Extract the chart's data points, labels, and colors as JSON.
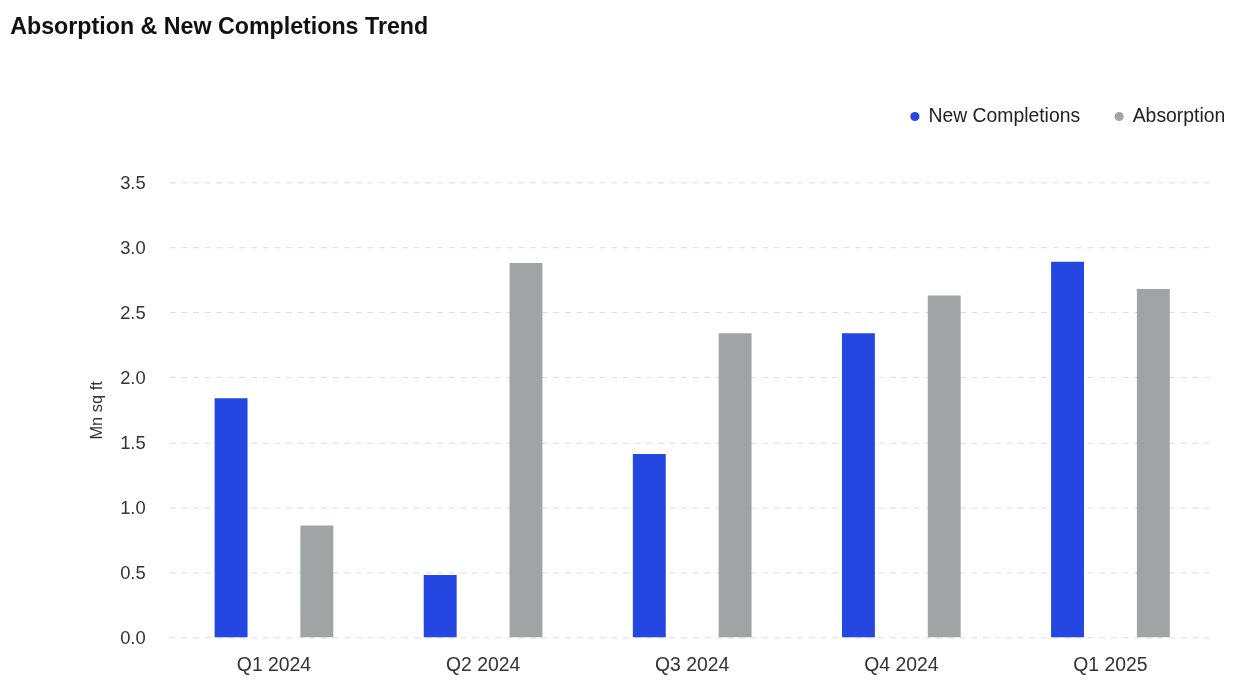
{
  "chart_data": {
    "type": "bar",
    "title": "Absorption & New Completions Trend",
    "ylabel": "Mn sq ft",
    "categories": [
      "Q1 2024",
      "Q2 2024",
      "Q3 2024",
      "Q4 2024",
      "Q1 2025"
    ],
    "series": [
      {
        "name": "New Completions",
        "color": "#2347e0",
        "values": [
          1.84,
          0.48,
          1.41,
          2.34,
          2.89
        ]
      },
      {
        "name": "Absorption",
        "color": "#a1a4a4",
        "values": [
          0.86,
          2.88,
          2.34,
          2.63,
          2.68
        ]
      }
    ],
    "ylim": [
      0,
      3.5
    ],
    "yticks": [
      {
        "value": 0,
        "label": "0.0"
      },
      0.5,
      {
        "value": 1,
        "label": "1.0"
      },
      1.5,
      {
        "value": 2,
        "label": "2.0"
      },
      2.5,
      {
        "value": 3,
        "label": "3.0"
      },
      3.5
    ],
    "grid": "y",
    "legend": "top right"
  }
}
